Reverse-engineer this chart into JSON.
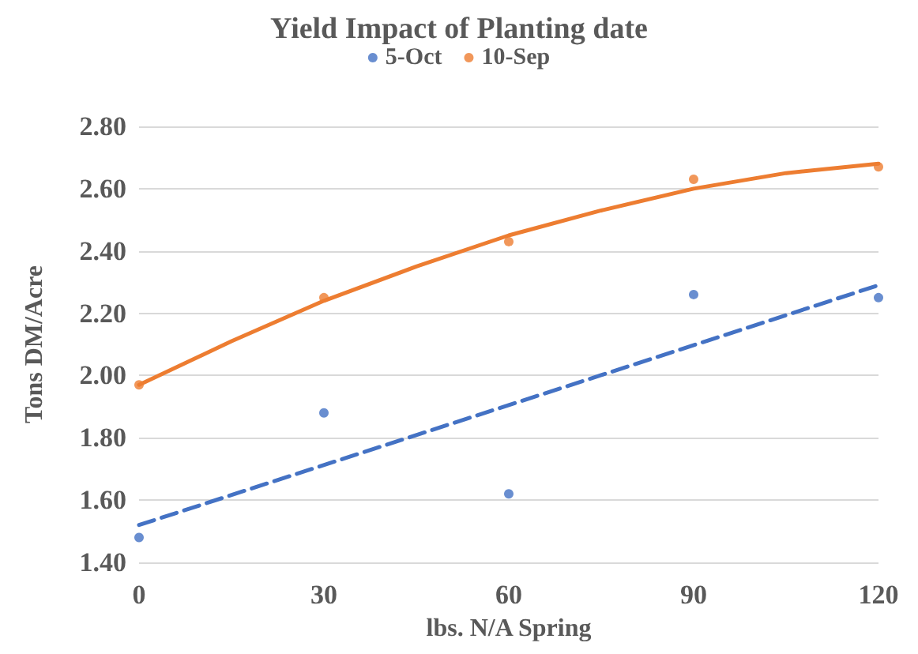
{
  "chart_data": {
    "type": "scatter",
    "title": "Yield Impact of Planting date",
    "xlabel": "lbs. N/A Spring",
    "ylabel": "Tons DM/Acre",
    "x": [
      0,
      30,
      60,
      90,
      120
    ],
    "series": [
      {
        "name": "5-Oct",
        "color": "#4472c4",
        "values": [
          1.48,
          1.88,
          1.62,
          2.26,
          2.25
        ],
        "marker": "circle"
      },
      {
        "name": "10-Sep",
        "color": "#ed7d31",
        "values": [
          1.97,
          2.25,
          2.43,
          2.63,
          2.67
        ],
        "marker": "circle"
      },
      {
        "type": "line",
        "color": "#4472c4",
        "x": [
          0,
          120
        ],
        "values": [
          1.52,
          2.29
        ],
        "marker": "none",
        "line_style": "dashed"
      },
      {
        "type": "line",
        "color": "#ed7d31",
        "x": [
          0,
          15,
          30,
          45,
          60,
          75,
          90,
          105,
          120
        ],
        "values": [
          1.97,
          2.11,
          2.24,
          2.35,
          2.45,
          2.53,
          2.6,
          2.65,
          2.68
        ],
        "marker": "none",
        "line_style": "solid"
      }
    ],
    "xlim": [
      0,
      120
    ],
    "xticks": [
      0,
      30,
      60,
      90,
      120
    ],
    "ylim": [
      1.4,
      2.8
    ],
    "yticks": [
      {
        "value": 1.4,
        "label": "1.40"
      },
      {
        "value": 1.6,
        "label": "1.60"
      },
      {
        "value": 1.8,
        "label": "1.80"
      },
      {
        "value": 2.0,
        "label": "2.00"
      },
      {
        "value": 2.2,
        "label": "2.20"
      },
      {
        "value": 2.4,
        "label": "2.40"
      },
      {
        "value": 2.6,
        "label": "2.60"
      },
      {
        "value": 2.8,
        "label": "2.80"
      }
    ],
    "grid": "y",
    "legend": "top"
  }
}
